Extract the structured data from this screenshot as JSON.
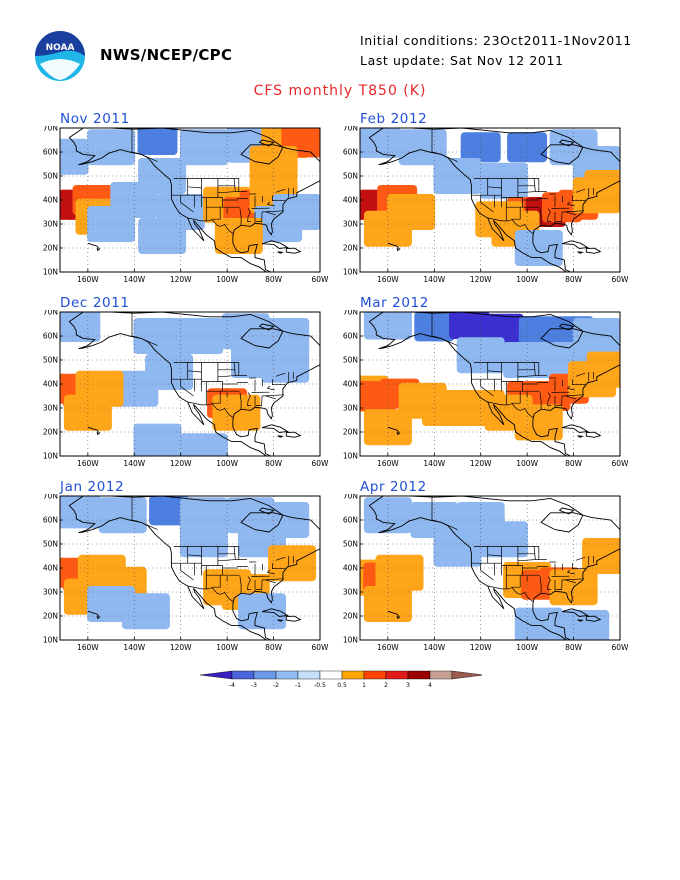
{
  "header": {
    "org": "NWS/NCEP/CPC",
    "initial_conditions": "Initial conditions: 23Oct2011-1Nov2011",
    "last_update": "Last update: Sat Nov 12 2011",
    "title": "CFS monthly T850 (K)",
    "logo_text": "NOAA"
  },
  "axes": {
    "lon_labels": [
      "160W",
      "140W",
      "120W",
      "100W",
      "80W",
      "60W"
    ],
    "lat_labels": [
      "70N",
      "60N",
      "50N",
      "40N",
      "30N",
      "20N",
      "10N"
    ]
  },
  "panels": [
    {
      "title": "Nov 2011",
      "anomalies": [
        {
          "lon": -170,
          "lat": 58,
          "v": -1
        },
        {
          "lon": -150,
          "lat": 62,
          "v": -1
        },
        {
          "lon": -130,
          "lat": 65,
          "v": -2
        },
        {
          "lon": -110,
          "lat": 62,
          "v": -1
        },
        {
          "lon": -90,
          "lat": 63,
          "v": -1
        },
        {
          "lon": -75,
          "lat": 65,
          "v": 1
        },
        {
          "lon": -68,
          "lat": 67,
          "v": 2
        },
        {
          "lon": -62,
          "lat": 64,
          "v": 2
        },
        {
          "lon": -80,
          "lat": 55,
          "v": 1
        },
        {
          "lon": -170,
          "lat": 38,
          "v": 2
        },
        {
          "lon": -164,
          "lat": 38,
          "v": 3
        },
        {
          "lon": -158,
          "lat": 40,
          "v": 2
        },
        {
          "lon": -155,
          "lat": 33,
          "v": 1
        },
        {
          "lon": -150,
          "lat": 30,
          "v": -1
        },
        {
          "lon": -140,
          "lat": 40,
          "v": -1
        },
        {
          "lon": -128,
          "lat": 50,
          "v": -1
        },
        {
          "lon": -120,
          "lat": 35,
          "v": -1
        },
        {
          "lon": -128,
          "lat": 25,
          "v": -1
        },
        {
          "lon": -100,
          "lat": 38,
          "v": 1
        },
        {
          "lon": -93,
          "lat": 35,
          "v": 2
        },
        {
          "lon": -86,
          "lat": 38,
          "v": 2
        },
        {
          "lon": -80,
          "lat": 42,
          "v": 1
        },
        {
          "lon": -78,
          "lat": 30,
          "v": -1
        },
        {
          "lon": -70,
          "lat": 35,
          "v": -1
        },
        {
          "lon": -95,
          "lat": 25,
          "v": 1
        }
      ]
    },
    {
      "title": "Feb 2012",
      "anomalies": [
        {
          "lon": -165,
          "lat": 65,
          "v": -1
        },
        {
          "lon": -145,
          "lat": 62,
          "v": -1
        },
        {
          "lon": -120,
          "lat": 62,
          "v": -2
        },
        {
          "lon": -100,
          "lat": 62,
          "v": -2
        },
        {
          "lon": -80,
          "lat": 62,
          "v": -1
        },
        {
          "lon": -70,
          "lat": 55,
          "v": -1
        },
        {
          "lon": -130,
          "lat": 50,
          "v": -1
        },
        {
          "lon": -110,
          "lat": 48,
          "v": -1
        },
        {
          "lon": -170,
          "lat": 38,
          "v": 2
        },
        {
          "lon": -164,
          "lat": 38,
          "v": 3
        },
        {
          "lon": -156,
          "lat": 40,
          "v": 2
        },
        {
          "lon": -150,
          "lat": 35,
          "v": 1
        },
        {
          "lon": -160,
          "lat": 28,
          "v": 1
        },
        {
          "lon": -100,
          "lat": 35,
          "v": 2
        },
        {
          "lon": -92,
          "lat": 35,
          "v": 3
        },
        {
          "lon": -85,
          "lat": 37,
          "v": 2
        },
        {
          "lon": -78,
          "lat": 38,
          "v": 2
        },
        {
          "lon": -70,
          "lat": 42,
          "v": 1
        },
        {
          "lon": -105,
          "lat": 28,
          "v": 1
        },
        {
          "lon": -112,
          "lat": 32,
          "v": 1
        },
        {
          "lon": -65,
          "lat": 45,
          "v": 1
        },
        {
          "lon": -95,
          "lat": 20,
          "v": -1
        }
      ]
    },
    {
      "title": "Dec 2011",
      "anomalies": [
        {
          "lon": -165,
          "lat": 65,
          "v": -1
        },
        {
          "lon": -130,
          "lat": 60,
          "v": -1
        },
        {
          "lon": -112,
          "lat": 60,
          "v": -1
        },
        {
          "lon": -92,
          "lat": 62,
          "v": -1
        },
        {
          "lon": -75,
          "lat": 60,
          "v": -1
        },
        {
          "lon": -88,
          "lat": 50,
          "v": -1
        },
        {
          "lon": -75,
          "lat": 48,
          "v": -1
        },
        {
          "lon": -125,
          "lat": 45,
          "v": -1
        },
        {
          "lon": -140,
          "lat": 38,
          "v": -1
        },
        {
          "lon": -170,
          "lat": 38,
          "v": 2
        },
        {
          "lon": -162,
          "lat": 36,
          "v": 2
        },
        {
          "lon": -155,
          "lat": 38,
          "v": 1
        },
        {
          "lon": -160,
          "lat": 28,
          "v": 1
        },
        {
          "lon": -100,
          "lat": 32,
          "v": 2
        },
        {
          "lon": -96,
          "lat": 28,
          "v": 1
        },
        {
          "lon": -130,
          "lat": 16,
          "v": -1
        },
        {
          "lon": -110,
          "lat": 12,
          "v": -1
        }
      ]
    },
    {
      "title": "Mar 2012",
      "anomalies": [
        {
          "lon": -160,
          "lat": 66,
          "v": -1
        },
        {
          "lon": -140,
          "lat": 64,
          "v": -2
        },
        {
          "lon": -125,
          "lat": 65,
          "v": -3
        },
        {
          "lon": -110,
          "lat": 63,
          "v": -3
        },
        {
          "lon": -95,
          "lat": 62,
          "v": -2
        },
        {
          "lon": -80,
          "lat": 62,
          "v": -2
        },
        {
          "lon": -70,
          "lat": 60,
          "v": -1
        },
        {
          "lon": -120,
          "lat": 52,
          "v": -1
        },
        {
          "lon": -100,
          "lat": 50,
          "v": -1
        },
        {
          "lon": -80,
          "lat": 50,
          "v": -1
        },
        {
          "lon": -170,
          "lat": 36,
          "v": 1
        },
        {
          "lon": -165,
          "lat": 35,
          "v": 2
        },
        {
          "lon": -155,
          "lat": 36,
          "v": 2
        },
        {
          "lon": -145,
          "lat": 33,
          "v": 1
        },
        {
          "lon": -135,
          "lat": 30,
          "v": 1
        },
        {
          "lon": -120,
          "lat": 30,
          "v": 1
        },
        {
          "lon": -160,
          "lat": 22,
          "v": 1
        },
        {
          "lon": -100,
          "lat": 35,
          "v": 2
        },
        {
          "lon": -90,
          "lat": 35,
          "v": 2
        },
        {
          "lon": -82,
          "lat": 38,
          "v": 2
        },
        {
          "lon": -72,
          "lat": 42,
          "v": 1
        },
        {
          "lon": -64,
          "lat": 46,
          "v": 1
        },
        {
          "lon": -108,
          "lat": 28,
          "v": 1
        },
        {
          "lon": -95,
          "lat": 24,
          "v": 1
        }
      ]
    },
    {
      "title": "Jan 2012",
      "anomalies": [
        {
          "lon": -165,
          "lat": 64,
          "v": -1
        },
        {
          "lon": -145,
          "lat": 62,
          "v": -1
        },
        {
          "lon": -125,
          "lat": 64,
          "v": -2
        },
        {
          "lon": -110,
          "lat": 62,
          "v": -1
        },
        {
          "lon": -90,
          "lat": 62,
          "v": -1
        },
        {
          "lon": -75,
          "lat": 60,
          "v": -1
        },
        {
          "lon": -110,
          "lat": 52,
          "v": -1
        },
        {
          "lon": -85,
          "lat": 52,
          "v": -1
        },
        {
          "lon": -168,
          "lat": 38,
          "v": 2
        },
        {
          "lon": -162,
          "lat": 36,
          "v": 2
        },
        {
          "lon": -154,
          "lat": 38,
          "v": 1
        },
        {
          "lon": -145,
          "lat": 33,
          "v": 1
        },
        {
          "lon": -160,
          "lat": 28,
          "v": 1
        },
        {
          "lon": -150,
          "lat": 25,
          "v": -1
        },
        {
          "lon": -135,
          "lat": 22,
          "v": -1
        },
        {
          "lon": -100,
          "lat": 32,
          "v": 1
        },
        {
          "lon": -92,
          "lat": 30,
          "v": 1
        },
        {
          "lon": -72,
          "lat": 42,
          "v": 1
        },
        {
          "lon": -85,
          "lat": 22,
          "v": -1
        }
      ]
    },
    {
      "title": "Apr 2012",
      "anomalies": [
        {
          "lon": -160,
          "lat": 62,
          "v": -1
        },
        {
          "lon": -140,
          "lat": 60,
          "v": -1
        },
        {
          "lon": -120,
          "lat": 60,
          "v": -1
        },
        {
          "lon": -110,
          "lat": 52,
          "v": -1
        },
        {
          "lon": -130,
          "lat": 48,
          "v": -1
        },
        {
          "lon": -168,
          "lat": 36,
          "v": 1
        },
        {
          "lon": -162,
          "lat": 36,
          "v": 2
        },
        {
          "lon": -155,
          "lat": 38,
          "v": 1
        },
        {
          "lon": -160,
          "lat": 25,
          "v": 1
        },
        {
          "lon": -100,
          "lat": 35,
          "v": 1
        },
        {
          "lon": -94,
          "lat": 33,
          "v": 2
        },
        {
          "lon": -86,
          "lat": 34,
          "v": 2
        },
        {
          "lon": -80,
          "lat": 32,
          "v": 1
        },
        {
          "lon": -66,
          "lat": 45,
          "v": 1
        },
        {
          "lon": -95,
          "lat": 16,
          "v": -1
        },
        {
          "lon": -75,
          "lat": 15,
          "v": -1
        }
      ]
    }
  ],
  "colorbar": {
    "labels": [
      "-4",
      "-3",
      "-2",
      "-1",
      "-0.5",
      "0.5",
      "1",
      "2",
      "3",
      "4"
    ],
    "colors": [
      "#3b1fbf",
      "#4b64dc",
      "#6b9ae6",
      "#92bdf2",
      "#c4e0fb",
      "#ffffff",
      "#ffa500",
      "#ff4500",
      "#e01a1a",
      "#9b0000",
      "#c7a093",
      "#9b5b4f"
    ]
  }
}
